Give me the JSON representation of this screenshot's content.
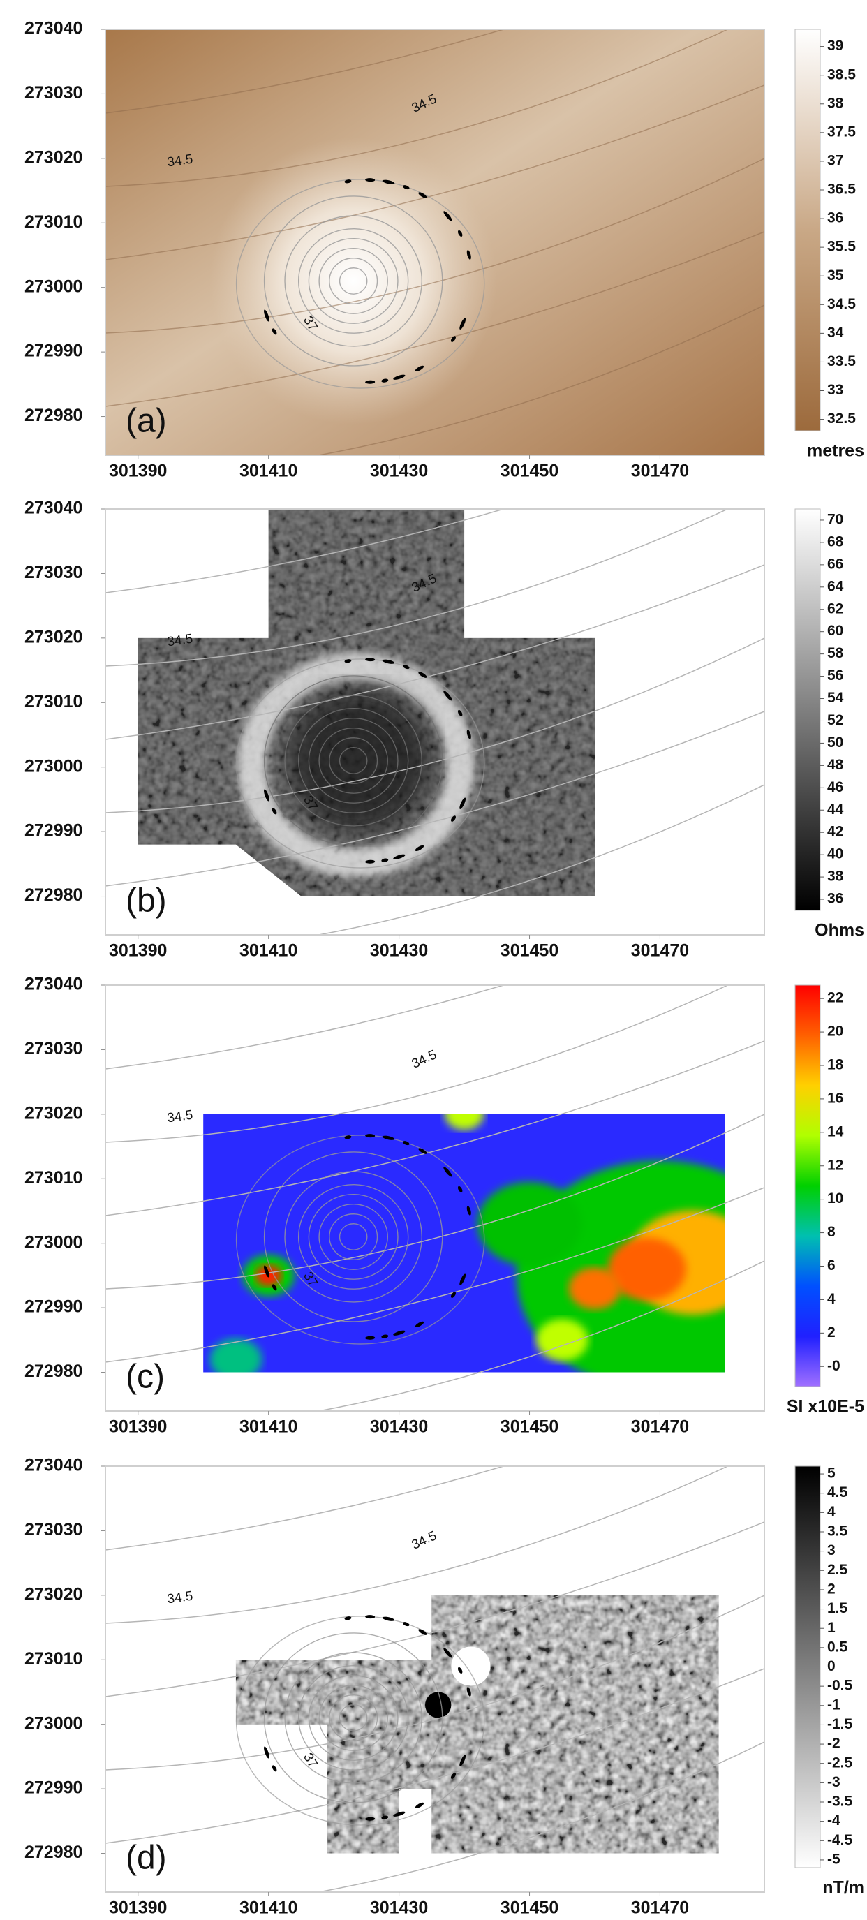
{
  "panels": [
    {
      "label": "(a)",
      "xlim": [
        301385,
        301486
      ],
      "ylim": [
        272974,
        273040
      ],
      "xticks": [
        301390,
        301410,
        301430,
        301450,
        301470
      ],
      "yticks": [
        273040,
        273030,
        273020,
        273010,
        273000,
        272990,
        272980
      ],
      "contour_labels": [
        "34.5",
        "34.5",
        "37"
      ],
      "colorbar": {
        "unit": "metres",
        "clim": [
          32.3,
          39.3
        ],
        "colors": [
          "#9c6a3c",
          "#c9a886",
          "#ffffff"
        ],
        "ticks": [
          39,
          38.5,
          38,
          37.5,
          37,
          36.5,
          36,
          35.5,
          35,
          34.5,
          34,
          33.5,
          33,
          32.5
        ]
      }
    },
    {
      "label": "(b)",
      "xlim": [
        301385,
        301486
      ],
      "ylim": [
        272974,
        273040
      ],
      "xticks": [
        301390,
        301410,
        301430,
        301450,
        301470
      ],
      "yticks": [
        273040,
        273030,
        273020,
        273010,
        273000,
        272990,
        272980
      ],
      "contour_labels": [
        "34.5",
        "34.5",
        "37"
      ],
      "colorbar": {
        "unit": "Ohms",
        "clim": [
          35,
          71
        ],
        "colors": [
          "#000000",
          "#ffffff"
        ],
        "ticks": [
          70,
          68,
          66,
          64,
          62,
          60,
          58,
          56,
          54,
          52,
          50,
          48,
          46,
          44,
          42,
          40,
          38,
          36
        ]
      }
    },
    {
      "label": "(c)",
      "xlim": [
        301385,
        301486
      ],
      "ylim": [
        272974,
        273040
      ],
      "xticks": [
        301390,
        301410,
        301430,
        301450,
        301470
      ],
      "yticks": [
        273040,
        273030,
        273020,
        273010,
        273000,
        272990,
        272980
      ],
      "contour_labels": [
        "34.5",
        "34.5",
        "37"
      ],
      "colorbar": {
        "unit": "SI x10E-5",
        "clim": [
          -1.2,
          22.8
        ],
        "colors": [
          "#a070ff",
          "#2020ff",
          "#0050ff",
          "#00c0b0",
          "#00d000",
          "#b0ff00",
          "#ffd000",
          "#ff6000",
          "#ff0000"
        ],
        "ticks": [
          22,
          20,
          18,
          16,
          14,
          12,
          10,
          8,
          6,
          4,
          2,
          {
            "value": 0,
            "label": "-0"
          }
        ]
      }
    },
    {
      "label": "(d)",
      "xlim": [
        301385,
        301486
      ],
      "ylim": [
        272974,
        273040
      ],
      "xticks": [
        301390,
        301410,
        301430,
        301450,
        301470
      ],
      "yticks": [
        273040,
        273030,
        273020,
        273010,
        273000,
        272990,
        272980
      ],
      "contour_labels": [
        "34.5",
        "34.5",
        "37"
      ],
      "colorbar": {
        "unit": "nT/m",
        "clim": [
          -5.2,
          5.2
        ],
        "colors": [
          "#ffffff",
          "#000000"
        ],
        "ticks": [
          5,
          4.5,
          4,
          3.5,
          3,
          2.5,
          2,
          1.5,
          1,
          0.5,
          0,
          -0.5,
          -1,
          -1.5,
          -2,
          -2.5,
          -3,
          -3.5,
          -4,
          -4.5,
          -5
        ]
      }
    }
  ]
}
